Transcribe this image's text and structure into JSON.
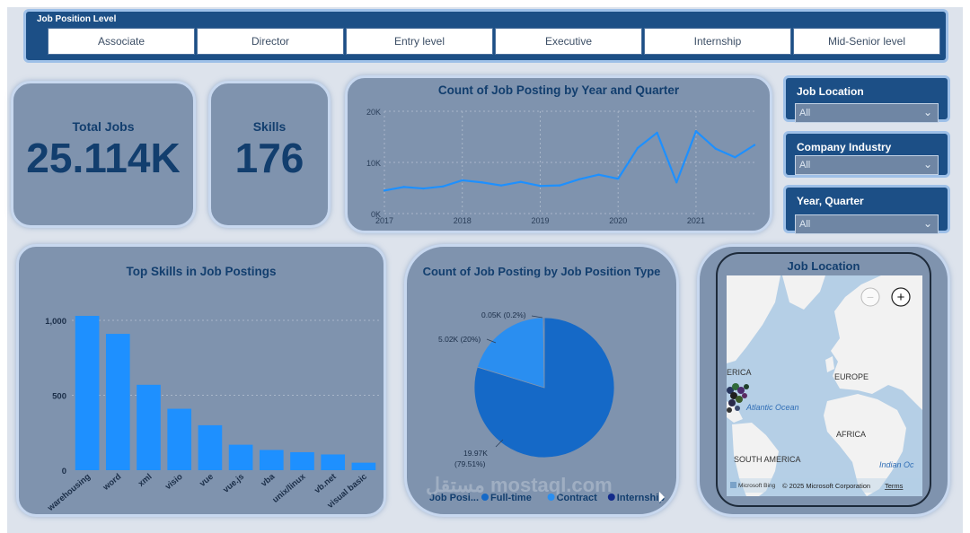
{
  "slicer": {
    "title": "Job Position Level",
    "options": [
      "Associate",
      "Director",
      "Entry level",
      "Executive",
      "Internship",
      "Mid-Senior level"
    ]
  },
  "kpis": {
    "total_jobs_label": "Total Jobs",
    "total_jobs_value": "25.114K",
    "skills_label": "Skills",
    "skills_value": "176"
  },
  "filters": [
    {
      "label": "Job Location",
      "value": "All"
    },
    {
      "label": "Company Industry",
      "value": "All"
    },
    {
      "label": "Year, Quarter",
      "value": "All"
    }
  ],
  "map": {
    "title": "Job Location",
    "labels": {
      "america": "ERICA",
      "europe": "EUROPE",
      "atlantic": "Atlantic Ocean",
      "africa": "AFRICA",
      "south_america": "SOUTH AMERICA",
      "indian": "Indian Oc"
    },
    "zoom_in": "+",
    "zoom_out": "−",
    "credit": "Microsoft Bing",
    "copyright": "© 2025 Microsoft Corporation",
    "terms": "Terms"
  },
  "watermark": "مستقل mostaql.com",
  "colors": {
    "accent": "#1e90ff",
    "dark_blue": "#1c4f86",
    "pie_main": "#1569c7",
    "pie_contract": "#2a8ef0",
    "pie_intern": "#122a8a"
  },
  "chart_data": [
    {
      "type": "line",
      "title": "Count of Job Posting by Year and Quarter",
      "x": [
        2017.0,
        2017.25,
        2017.5,
        2017.75,
        2018.0,
        2018.25,
        2018.5,
        2018.75,
        2019.0,
        2019.25,
        2019.5,
        2019.75,
        2020.0,
        2020.25,
        2020.5,
        2020.75,
        2021.0,
        2021.25,
        2021.5,
        2021.75
      ],
      "y": [
        4500,
        5200,
        4900,
        5300,
        6500,
        6100,
        5500,
        6200,
        5400,
        5500,
        6700,
        7600,
        6800,
        12800,
        15800,
        6100,
        16100,
        12700,
        11000,
        13400
      ],
      "xticks": [
        "2017",
        "2018",
        "2019",
        "2020",
        "2021"
      ],
      "yticks": [
        "0K",
        "10K",
        "20K"
      ],
      "ylim": [
        0,
        20000
      ],
      "grid": true
    },
    {
      "type": "bar",
      "title": "Top Skills in Job Postings",
      "categories": [
        "warehousing",
        "word",
        "xml",
        "visio",
        "vue",
        "vue.js",
        "vba",
        "unix/linux",
        "vb.net",
        "visual basic"
      ],
      "values": [
        1030,
        910,
        570,
        410,
        300,
        170,
        135,
        120,
        105,
        50
      ],
      "yticks": [
        "0",
        "500",
        "1,000"
      ],
      "ylim": [
        0,
        1150
      ],
      "grid": true
    },
    {
      "type": "pie",
      "title": "Count of Job Posting by Job Position Type",
      "slices": [
        {
          "name": "Full-time",
          "value": 19970,
          "label_value": "19.97K",
          "label_pct": "(79.51%)",
          "color": "#1569c7"
        },
        {
          "name": "Contract",
          "value": 5020,
          "label": "5.02K (20%)",
          "color": "#2a8ef0"
        },
        {
          "name": "Internship",
          "value": 50,
          "label": "0.05K (0.2%)",
          "color": "#122a8a"
        }
      ],
      "legend_title": "Job Posi..."
    }
  ]
}
